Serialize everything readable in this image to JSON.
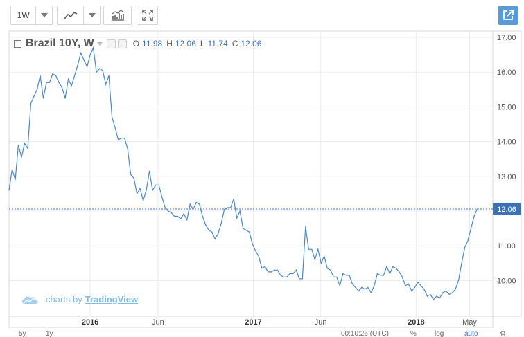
{
  "toolbar": {
    "interval": "1W",
    "bar_style_icon": "line-chart-icon",
    "indicators_icon": "indicators-icon",
    "fullscreen_icon": "fullscreen-icon",
    "share_icon": "share-icon"
  },
  "legend": {
    "symbol": "Brazil 10Y, W",
    "open_key": "O",
    "open": "11.98",
    "high_key": "H",
    "high": "12.06",
    "low_key": "L",
    "low": "11.74",
    "close_key": "C",
    "close": "12.06"
  },
  "watermark": {
    "prefix": "charts by",
    "brand": "TradingView"
  },
  "price_label": "12.06",
  "bottom_bar": {
    "range_5y": "5y",
    "range_1y": "1y",
    "clock": "00:10:26 (UTC)",
    "percent": "%",
    "log": "log",
    "auto": "auto"
  },
  "colors": {
    "line": "#4a86c5",
    "accent": "#5b9bd5",
    "price_tag": "#3d73b5"
  },
  "chart_data": {
    "type": "line",
    "title": "Brazil 10Y, W",
    "y_ticks": [
      "17.00",
      "16.00",
      "15.00",
      "14.00",
      "13.00",
      "12.00",
      "11.00",
      "10.00"
    ],
    "x_ticks": [
      "2016",
      "Jun",
      "2017",
      "Jun",
      "2018",
      "May"
    ],
    "ylim": [
      9.0,
      17.0
    ],
    "xlim": [
      "2015-07-03",
      "2018-06-22"
    ],
    "grid": true,
    "last_value": 12.06,
    "series": [
      {
        "values": [
          [
            "2015-07-03",
            12.6
          ],
          [
            "2015-07-10",
            13.2
          ],
          [
            "2015-07-17",
            12.9
          ],
          [
            "2015-07-24",
            13.9
          ],
          [
            "2015-07-31",
            13.55
          ],
          [
            "2015-08-07",
            13.95
          ],
          [
            "2015-08-14",
            13.8
          ],
          [
            "2015-08-21",
            15.1
          ],
          [
            "2015-08-28",
            15.3
          ],
          [
            "2015-09-04",
            15.5
          ],
          [
            "2015-09-11",
            15.9
          ],
          [
            "2015-09-18",
            15.25
          ],
          [
            "2015-09-25",
            15.7
          ],
          [
            "2015-10-02",
            15.7
          ],
          [
            "2015-10-09",
            15.95
          ],
          [
            "2015-10-16",
            15.9
          ],
          [
            "2015-10-23",
            15.7
          ],
          [
            "2015-10-30",
            15.55
          ],
          [
            "2015-11-06",
            15.25
          ],
          [
            "2015-11-13",
            15.8
          ],
          [
            "2015-11-20",
            15.6
          ],
          [
            "2015-11-27",
            15.9
          ],
          [
            "2015-12-04",
            16.2
          ],
          [
            "2015-12-11",
            16.55
          ],
          [
            "2015-12-18",
            16.35
          ],
          [
            "2015-12-25",
            16.15
          ],
          [
            "2016-01-01",
            16.5
          ],
          [
            "2016-01-08",
            16.7
          ],
          [
            "2016-01-15",
            16.0
          ],
          [
            "2016-01-22",
            16.1
          ],
          [
            "2016-01-29",
            16.05
          ],
          [
            "2016-02-05",
            15.65
          ],
          [
            "2016-02-12",
            15.9
          ],
          [
            "2016-02-19",
            14.7
          ],
          [
            "2016-02-26",
            14.4
          ],
          [
            "2016-03-04",
            14.05
          ],
          [
            "2016-03-11",
            14.1
          ],
          [
            "2016-03-18",
            14.1
          ],
          [
            "2016-03-25",
            13.8
          ],
          [
            "2016-04-01",
            13.05
          ],
          [
            "2016-04-08",
            12.95
          ],
          [
            "2016-04-15",
            12.5
          ],
          [
            "2016-04-22",
            12.65
          ],
          [
            "2016-04-29",
            12.3
          ],
          [
            "2016-05-06",
            12.6
          ],
          [
            "2016-05-13",
            13.15
          ],
          [
            "2016-05-20",
            12.6
          ],
          [
            "2016-05-27",
            12.75
          ],
          [
            "2016-06-03",
            12.75
          ],
          [
            "2016-06-10",
            12.4
          ],
          [
            "2016-06-17",
            12.1
          ],
          [
            "2016-06-24",
            12.0
          ],
          [
            "2016-07-01",
            11.95
          ],
          [
            "2016-07-08",
            11.85
          ],
          [
            "2016-07-15",
            11.85
          ],
          [
            "2016-07-22",
            11.78
          ],
          [
            "2016-07-29",
            11.92
          ],
          [
            "2016-08-05",
            11.75
          ],
          [
            "2016-08-12",
            12.2
          ],
          [
            "2016-08-19",
            12.05
          ],
          [
            "2016-08-26",
            12.25
          ],
          [
            "2016-09-02",
            12.2
          ],
          [
            "2016-09-09",
            11.85
          ],
          [
            "2016-09-16",
            11.6
          ],
          [
            "2016-09-23",
            11.45
          ],
          [
            "2016-09-30",
            11.4
          ],
          [
            "2016-10-07",
            11.2
          ],
          [
            "2016-10-14",
            11.35
          ],
          [
            "2016-10-21",
            11.65
          ],
          [
            "2016-10-28",
            12.05
          ],
          [
            "2016-11-04",
            12.1
          ],
          [
            "2016-11-11",
            12.1
          ],
          [
            "2016-11-18",
            12.35
          ],
          [
            "2016-11-25",
            11.8
          ],
          [
            "2016-12-02",
            12.0
          ],
          [
            "2016-12-09",
            11.5
          ],
          [
            "2016-12-16",
            11.45
          ],
          [
            "2016-12-23",
            11.4
          ],
          [
            "2016-12-30",
            11.05
          ],
          [
            "2017-01-06",
            10.85
          ],
          [
            "2017-01-13",
            10.7
          ],
          [
            "2017-01-20",
            10.35
          ],
          [
            "2017-01-27",
            10.4
          ],
          [
            "2017-02-03",
            10.25
          ],
          [
            "2017-02-10",
            10.25
          ],
          [
            "2017-02-17",
            10.3
          ],
          [
            "2017-02-24",
            10.3
          ],
          [
            "2017-03-03",
            10.15
          ],
          [
            "2017-03-10",
            10.1
          ],
          [
            "2017-03-17",
            10.1
          ],
          [
            "2017-03-24",
            10.2
          ],
          [
            "2017-03-31",
            10.2
          ],
          [
            "2017-04-07",
            10.3
          ],
          [
            "2017-04-14",
            10.05
          ],
          [
            "2017-04-21",
            10.05
          ],
          [
            "2017-04-28",
            11.55
          ],
          [
            "2017-05-05",
            10.9
          ],
          [
            "2017-05-12",
            10.9
          ],
          [
            "2017-05-19",
            10.6
          ],
          [
            "2017-05-26",
            10.9
          ],
          [
            "2017-06-02",
            10.5
          ],
          [
            "2017-06-09",
            10.7
          ],
          [
            "2017-06-16",
            10.35
          ],
          [
            "2017-06-23",
            10.3
          ],
          [
            "2017-06-30",
            10.1
          ],
          [
            "2017-07-07",
            10.1
          ],
          [
            "2017-07-14",
            9.85
          ],
          [
            "2017-07-21",
            10.2
          ],
          [
            "2017-07-28",
            10.15
          ],
          [
            "2017-08-04",
            10.15
          ],
          [
            "2017-08-11",
            9.9
          ],
          [
            "2017-08-18",
            9.8
          ],
          [
            "2017-08-25",
            9.7
          ],
          [
            "2017-09-01",
            9.8
          ],
          [
            "2017-09-08",
            9.75
          ],
          [
            "2017-09-15",
            9.8
          ],
          [
            "2017-09-22",
            9.65
          ],
          [
            "2017-09-29",
            9.85
          ],
          [
            "2017-10-06",
            10.2
          ],
          [
            "2017-10-13",
            10.15
          ],
          [
            "2017-10-20",
            10.15
          ],
          [
            "2017-10-27",
            10.4
          ],
          [
            "2017-11-03",
            10.2
          ],
          [
            "2017-11-10",
            10.4
          ],
          [
            "2017-11-17",
            10.35
          ],
          [
            "2017-11-24",
            10.25
          ],
          [
            "2017-12-01",
            10.1
          ],
          [
            "2017-12-08",
            9.85
          ],
          [
            "2017-12-15",
            9.9
          ],
          [
            "2017-12-22",
            9.7
          ],
          [
            "2017-12-29",
            9.8
          ],
          [
            "2018-01-05",
            9.95
          ],
          [
            "2018-01-12",
            9.85
          ],
          [
            "2018-01-19",
            9.75
          ],
          [
            "2018-01-26",
            9.55
          ],
          [
            "2018-02-02",
            9.6
          ],
          [
            "2018-02-09",
            9.45
          ],
          [
            "2018-02-16",
            9.55
          ],
          [
            "2018-02-23",
            9.5
          ],
          [
            "2018-03-02",
            9.65
          ],
          [
            "2018-03-09",
            9.7
          ],
          [
            "2018-03-16",
            9.6
          ],
          [
            "2018-03-23",
            9.65
          ],
          [
            "2018-03-30",
            9.75
          ],
          [
            "2018-04-06",
            10.0
          ],
          [
            "2018-04-13",
            10.5
          ],
          [
            "2018-04-20",
            10.95
          ],
          [
            "2018-04-27",
            11.15
          ],
          [
            "2018-05-04",
            11.5
          ],
          [
            "2018-05-11",
            11.85
          ],
          [
            "2018-05-18",
            12.06
          ]
        ]
      }
    ]
  }
}
